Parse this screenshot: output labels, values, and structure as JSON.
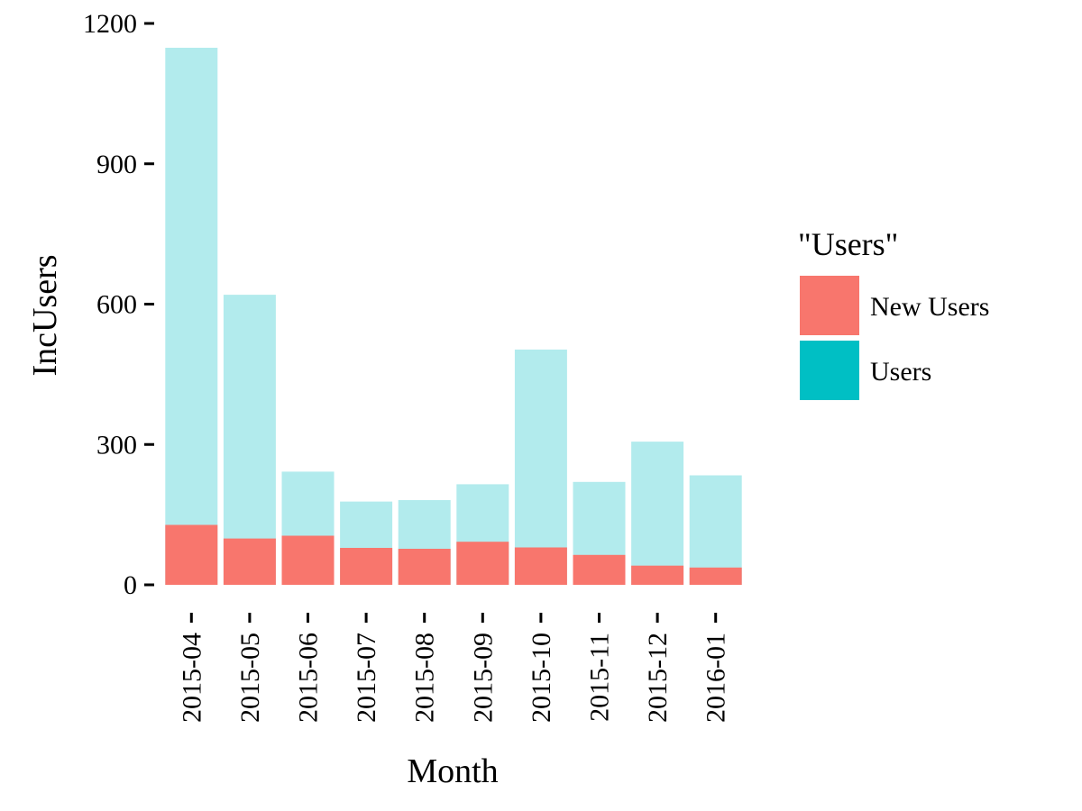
{
  "chart_data": {
    "type": "bar",
    "stacking": "overlay",
    "title": "",
    "xlabel": "Month",
    "ylabel": "IncUsers",
    "categories": [
      "2015-04",
      "2015-05",
      "2015-06",
      "2015-07",
      "2015-08",
      "2015-09",
      "2015-10",
      "2015-11",
      "2015-12",
      "2016-01"
    ],
    "series": [
      {
        "name": "Users",
        "color": "#00BFC4",
        "display_color": "#B2EBED",
        "values": [
          1148,
          620,
          242,
          178,
          181,
          215,
          503,
          220,
          306,
          234
        ]
      },
      {
        "name": "New Users",
        "color": "#F8766D",
        "values": [
          128,
          99,
          105,
          79,
          77,
          92,
          80,
          64,
          41,
          37
        ]
      }
    ],
    "ylim": [
      0,
      1200
    ],
    "yticks": [
      0,
      300,
      600,
      900,
      1200
    ],
    "ytick_labels": [
      "0",
      "300",
      "600",
      "900",
      "1200"
    ],
    "grid": false,
    "legend": {
      "title": "\"Users\"",
      "position": "right",
      "entries": [
        {
          "label": "New Users",
          "color": "#F8766D"
        },
        {
          "label": "Users",
          "color": "#00BFC4"
        }
      ]
    }
  }
}
